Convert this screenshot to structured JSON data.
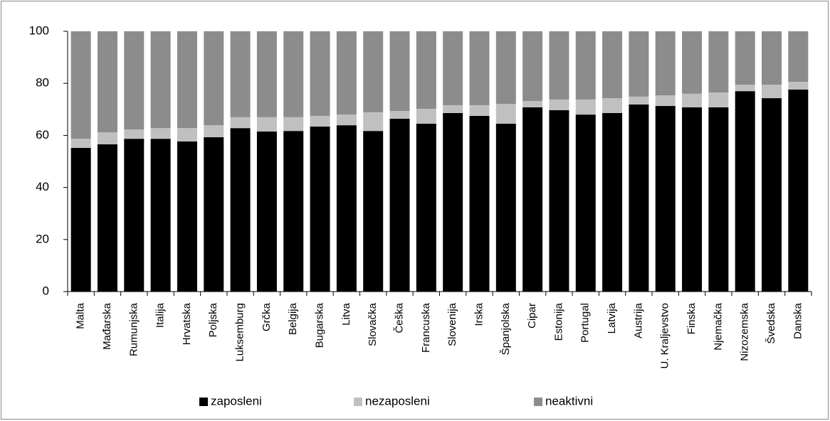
{
  "chart_data": {
    "type": "stacked_bar",
    "categories": [
      "Malta",
      "Mađarska",
      "Rumunjska",
      "Italija",
      "Hrvatska",
      "Poljska",
      "Luksemburg",
      "Grčka",
      "Belgija",
      "Bugarska",
      "Litva",
      "Slovačka",
      "Češka",
      "Francuska",
      "Slovenija",
      "Irska",
      "Španjolska",
      "Cipar",
      "Estonija",
      "Portugal",
      "Latvija",
      "Austrija",
      "U. Kraljevstvo",
      "Finska",
      "Njemačka",
      "Nizozemska",
      "Švedska",
      "Danska"
    ],
    "series": [
      {
        "name": "zaposleni",
        "color": "#000000",
        "values": [
          55.2,
          56.6,
          58.7,
          58.7,
          57.7,
          59.3,
          62.8,
          61.5,
          61.7,
          63.4,
          63.9,
          61.7,
          66.4,
          64.5,
          68.6,
          67.5,
          64.5,
          70.8,
          69.7,
          68.0,
          68.6,
          71.9,
          71.3,
          70.8,
          70.8,
          77.0,
          74.3,
          77.6
        ]
      },
      {
        "name": "nezaposleni",
        "color": "#c0c0c0",
        "values": [
          3.5,
          4.6,
          3.6,
          4.1,
          5.1,
          4.6,
          4.2,
          5.5,
          5.3,
          4.1,
          4.1,
          7.2,
          3.0,
          5.7,
          3.0,
          4.1,
          7.6,
          2.4,
          4.1,
          5.8,
          5.7,
          3.0,
          4.1,
          5.2,
          5.7,
          2.5,
          5.2,
          3.0
        ]
      },
      {
        "name": "neaktivni",
        "color": "#8c8c8c",
        "values": [
          41.3,
          38.8,
          37.7,
          37.2,
          37.2,
          36.1,
          33.0,
          33.0,
          33.0,
          32.5,
          32.0,
          31.1,
          30.6,
          29.8,
          28.4,
          28.4,
          27.9,
          26.8,
          26.2,
          26.2,
          25.7,
          25.1,
          24.6,
          24.0,
          23.5,
          20.5,
          20.5,
          19.4
        ]
      }
    ],
    "ylim": [
      0,
      100
    ],
    "yticks": [
      0,
      20,
      40,
      60,
      80,
      100
    ]
  }
}
